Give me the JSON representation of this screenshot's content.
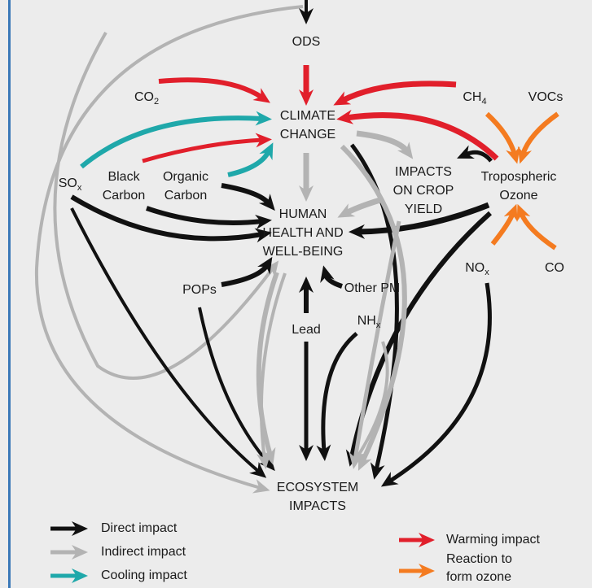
{
  "nodes": {
    "ods": {
      "lines": [
        "ODS"
      ]
    },
    "climate_change": {
      "lines": [
        "CLIMATE",
        "CHANGE"
      ]
    },
    "co2": {
      "lines": [
        "CO"
      ],
      "sub": "2"
    },
    "ch4": {
      "lines": [
        "CH"
      ],
      "sub": "4"
    },
    "vocs": {
      "lines": [
        "VOCs"
      ]
    },
    "sox": {
      "lines": [
        "SO"
      ],
      "sub": "x"
    },
    "black_carbon": {
      "lines": [
        "Black",
        "Carbon"
      ]
    },
    "organic_carbon": {
      "lines": [
        "Organic",
        "Carbon"
      ]
    },
    "crop_yield": {
      "lines": [
        "IMPACTS",
        "ON CROP",
        "YIELD"
      ]
    },
    "tropospheric_ozone": {
      "lines": [
        "Tropospheric",
        "Ozone"
      ]
    },
    "human_health": {
      "lines": [
        "HUMAN",
        "HEALTH AND",
        "WELL-BEING"
      ]
    },
    "nox": {
      "lines": [
        "NO"
      ],
      "sub": "x"
    },
    "co": {
      "lines": [
        "CO"
      ]
    },
    "pops": {
      "lines": [
        "POPs"
      ]
    },
    "other_pm": {
      "lines": [
        "Other PM"
      ]
    },
    "lead": {
      "lines": [
        "Lead"
      ]
    },
    "nhx": {
      "lines": [
        "NH"
      ],
      "sub": "x"
    },
    "ecosystem": {
      "lines": [
        "ECOSYSTEM",
        "IMPACTS"
      ]
    }
  },
  "legend": [
    {
      "label": "Direct impact"
    },
    {
      "label": "Indirect impact"
    },
    {
      "label": "Cooling impact"
    },
    {
      "label": "Warming impact"
    },
    {
      "label": "Reaction to form ozone",
      "lines": [
        "Reaction to",
        "form ozone"
      ]
    }
  ]
}
